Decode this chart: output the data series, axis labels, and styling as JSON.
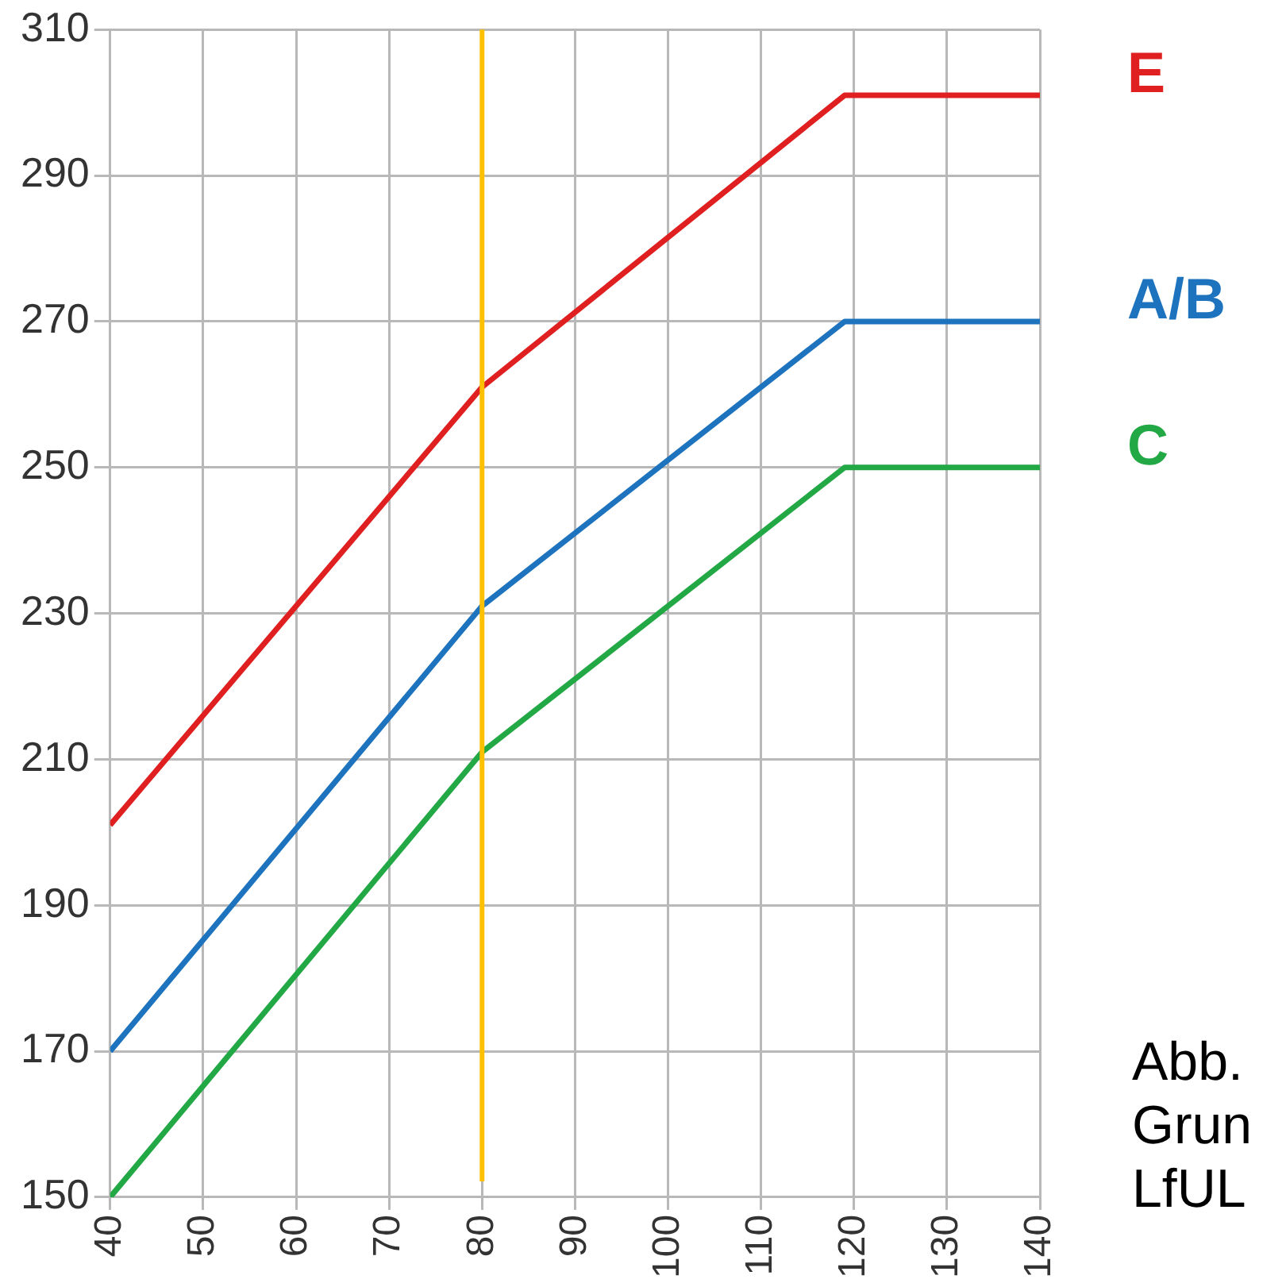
{
  "chart_data": {
    "type": "line",
    "xlim": [
      40,
      140
    ],
    "xticks": [
      40,
      50,
      60,
      70,
      80,
      90,
      100,
      110,
      120,
      130,
      140
    ],
    "ylim": [
      150,
      310
    ],
    "yticks": [
      150,
      170,
      190,
      210,
      230,
      250,
      270,
      290,
      310
    ],
    "grid": true,
    "legend": false,
    "marker": "none",
    "line_style": "solid",
    "series": [
      {
        "name": "E",
        "color": "#e02020",
        "x": [
          40,
          80,
          119,
          140
        ],
        "values": [
          201,
          261,
          301,
          301
        ]
      },
      {
        "name": "A/B",
        "color": "#1e73be",
        "x": [
          40,
          80,
          119,
          140
        ],
        "values": [
          170,
          231,
          270,
          270
        ]
      },
      {
        "name": "C",
        "color": "#22a845",
        "x": [
          40,
          80,
          119,
          140
        ],
        "values": [
          150,
          211,
          250,
          250
        ]
      }
    ],
    "ref_lines": [
      {
        "axis": "x",
        "value": 80,
        "color": "#ffc000"
      }
    ],
    "annotations": [
      "Abb.",
      "Grun",
      "LfUL"
    ]
  }
}
